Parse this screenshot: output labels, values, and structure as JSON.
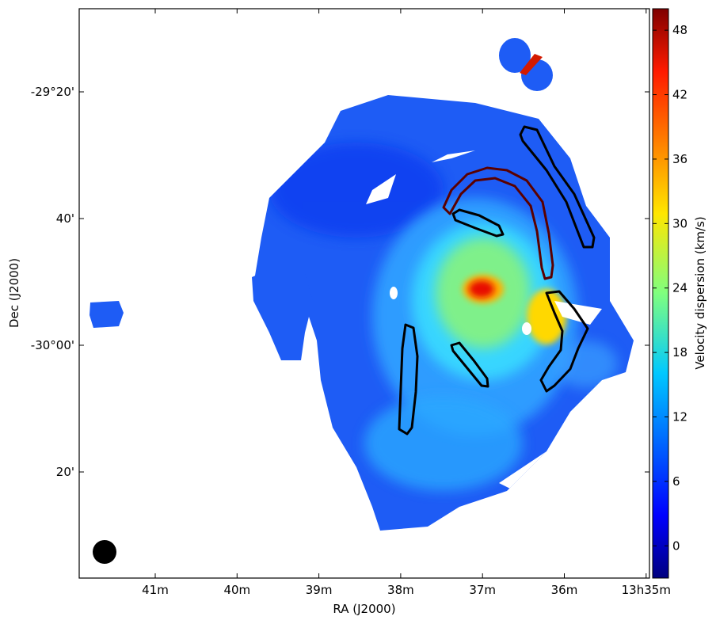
{
  "chart_data": {
    "type": "heatmap",
    "title": "",
    "xlabel": "RA (J2000)",
    "ylabel": "Dec (J2000)",
    "colorbar_label": "Velocity dispersion (km/s)",
    "colormap": "jet",
    "color_range": [
      -3,
      50
    ],
    "x_ticks": [
      "41m",
      "40m",
      "39m",
      "38m",
      "37m",
      "36m",
      "13h35m"
    ],
    "y_ticks": [
      "-29°20'",
      "40'",
      "-30°00'",
      "20'"
    ],
    "colorbar_ticks": [
      0,
      6,
      12,
      18,
      24,
      30,
      36,
      42,
      48
    ],
    "background_color": "#ffffff",
    "grid": false
  }
}
